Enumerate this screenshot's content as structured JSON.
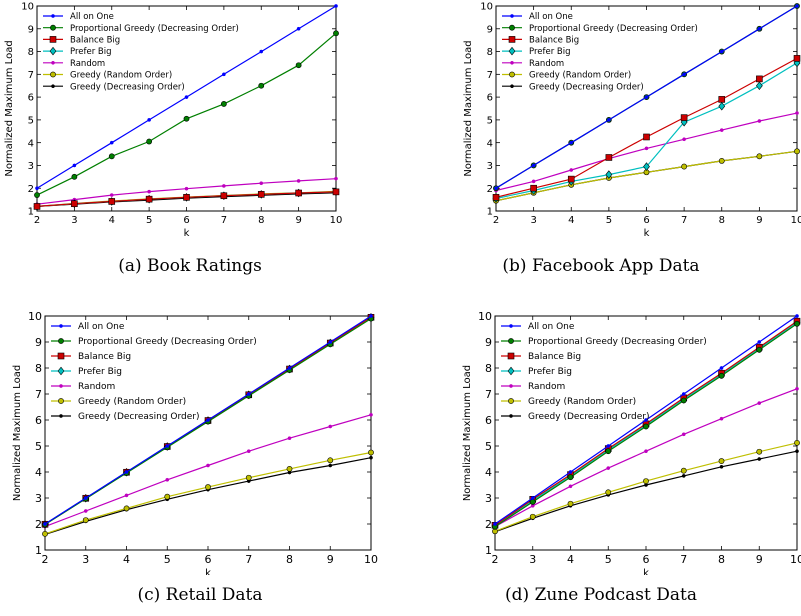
{
  "chart_data": [
    {
      "type": "line",
      "caption": "(a) Book Ratings",
      "xlabel": "k",
      "ylabel": "Normalized Maximum Load",
      "xlim": [
        2,
        10
      ],
      "ylim": [
        1,
        10
      ],
      "xticks": [
        2,
        3,
        4,
        5,
        6,
        7,
        8,
        9,
        10
      ],
      "yticks": [
        1,
        2,
        3,
        4,
        5,
        6,
        7,
        8,
        9,
        10
      ],
      "legend_position": "top-left",
      "grid": false,
      "x": [
        2,
        3,
        4,
        5,
        6,
        7,
        8,
        9,
        10
      ],
      "series": [
        {
          "name": "All on One",
          "color": "#0000ff",
          "marker": "dot",
          "values": [
            2,
            3,
            4,
            5,
            6,
            7,
            8,
            9,
            10
          ]
        },
        {
          "name": "Proportional Greedy (Decreasing Order)",
          "color": "#007f00",
          "marker": "circle",
          "values": [
            1.7,
            2.5,
            3.4,
            4.05,
            5.05,
            5.7,
            6.5,
            7.4,
            8.8
          ]
        },
        {
          "name": "Balance Big",
          "color": "#cc0000",
          "marker": "square",
          "values": [
            1.2,
            1.32,
            1.42,
            1.52,
            1.6,
            1.67,
            1.73,
            1.79,
            1.84
          ]
        },
        {
          "name": "Prefer Big",
          "color": "#00bfbf",
          "marker": "diamond",
          "values": [
            1.2,
            1.32,
            1.42,
            1.52,
            1.6,
            1.67,
            1.73,
            1.79,
            1.84
          ]
        },
        {
          "name": "Random",
          "color": "#bf00bf",
          "marker": "dot",
          "values": [
            1.3,
            1.5,
            1.7,
            1.85,
            1.98,
            2.1,
            2.22,
            2.32,
            2.42
          ]
        },
        {
          "name": "Greedy (Random Order)",
          "color": "#bfbf00",
          "marker": "circle",
          "values": [
            1.2,
            1.33,
            1.44,
            1.53,
            1.61,
            1.68,
            1.75,
            1.8,
            1.86
          ]
        },
        {
          "name": "Greedy (Decreasing Order)",
          "color": "#000000",
          "marker": "dot",
          "values": [
            1.2,
            1.3,
            1.4,
            1.48,
            1.56,
            1.63,
            1.69,
            1.75,
            1.8
          ]
        }
      ]
    },
    {
      "type": "line",
      "caption": "(b) Facebook App Data",
      "xlabel": "k",
      "ylabel": "Normalized Maximum Load",
      "xlim": [
        2,
        10
      ],
      "ylim": [
        1,
        10
      ],
      "xticks": [
        2,
        3,
        4,
        5,
        6,
        7,
        8,
        9,
        10
      ],
      "yticks": [
        1,
        2,
        3,
        4,
        5,
        6,
        7,
        8,
        9,
        10
      ],
      "legend_position": "top-left",
      "grid": false,
      "x": [
        2,
        3,
        4,
        5,
        6,
        7,
        8,
        9,
        10
      ],
      "series": [
        {
          "name": "All on One",
          "color": "#0000ff",
          "marker": "dot",
          "values": [
            2,
            3,
            4,
            5,
            6,
            7,
            8,
            9,
            10
          ]
        },
        {
          "name": "Proportional Greedy (Decreasing Order)",
          "color": "#007f00",
          "marker": "circle",
          "values": [
            2,
            3,
            4,
            5,
            6,
            7,
            8,
            9,
            10
          ]
        },
        {
          "name": "Balance Big",
          "color": "#cc0000",
          "marker": "square",
          "values": [
            1.6,
            2.0,
            2.4,
            3.35,
            4.25,
            5.1,
            5.9,
            6.8,
            7.7
          ]
        },
        {
          "name": "Prefer Big",
          "color": "#00bfbf",
          "marker": "diamond",
          "values": [
            1.55,
            1.9,
            2.3,
            2.6,
            2.95,
            4.9,
            5.6,
            6.5,
            7.5
          ]
        },
        {
          "name": "Random",
          "color": "#bf00bf",
          "marker": "dot",
          "values": [
            1.9,
            2.3,
            2.8,
            3.3,
            3.75,
            4.15,
            4.55,
            4.95,
            5.3
          ]
        },
        {
          "name": "Greedy (Random Order)",
          "color": "#bfbf00",
          "marker": "circle",
          "values": [
            1.45,
            1.8,
            2.15,
            2.45,
            2.7,
            2.95,
            3.2,
            3.4,
            3.62
          ]
        },
        {
          "name": "Greedy (Decreasing Order)",
          "color": "#000000",
          "marker": "dot",
          "values": [
            1.45,
            1.8,
            2.15,
            2.45,
            2.7,
            2.95,
            3.2,
            3.4,
            3.62
          ]
        }
      ]
    },
    {
      "type": "line",
      "caption": "(c) Retail Data",
      "xlabel": "k",
      "ylabel": "Normalized Maximum Load",
      "xlim": [
        2,
        10
      ],
      "ylim": [
        1,
        10
      ],
      "xticks": [
        2,
        3,
        4,
        5,
        6,
        7,
        8,
        9,
        10
      ],
      "yticks": [
        1,
        2,
        3,
        4,
        5,
        6,
        7,
        8,
        9,
        10
      ],
      "legend_position": "top-left",
      "grid": false,
      "x": [
        2,
        3,
        4,
        5,
        6,
        7,
        8,
        9,
        10
      ],
      "series": [
        {
          "name": "All on One",
          "color": "#0000ff",
          "marker": "dot",
          "values": [
            2,
            3,
            4,
            5,
            6,
            7,
            8,
            9,
            10
          ]
        },
        {
          "name": "Proportional Greedy (Decreasing Order)",
          "color": "#007f00",
          "marker": "circle",
          "values": [
            1.98,
            2.97,
            3.96,
            4.95,
            5.94,
            6.93,
            7.92,
            8.91,
            9.9
          ]
        },
        {
          "name": "Balance Big",
          "color": "#cc0000",
          "marker": "square",
          "values": [
            1.99,
            2.99,
            3.99,
            4.98,
            5.98,
            6.97,
            7.96,
            8.96,
            9.95
          ]
        },
        {
          "name": "Prefer Big",
          "color": "#00bfbf",
          "marker": "diamond",
          "values": [
            1.99,
            2.99,
            3.99,
            4.98,
            5.98,
            6.97,
            7.96,
            8.96,
            9.95
          ]
        },
        {
          "name": "Random",
          "color": "#bf00bf",
          "marker": "dot",
          "values": [
            1.9,
            2.5,
            3.1,
            3.7,
            4.25,
            4.8,
            5.3,
            5.75,
            6.2
          ]
        },
        {
          "name": "Greedy (Random Order)",
          "color": "#bfbf00",
          "marker": "circle",
          "values": [
            1.62,
            2.15,
            2.6,
            3.05,
            3.42,
            3.78,
            4.12,
            4.45,
            4.75
          ]
        },
        {
          "name": "Greedy (Decreasing Order)",
          "color": "#000000",
          "marker": "dot",
          "values": [
            1.6,
            2.1,
            2.55,
            2.95,
            3.32,
            3.65,
            3.98,
            4.25,
            4.55
          ]
        }
      ]
    },
    {
      "type": "line",
      "caption": "(d) Zune Podcast Data",
      "xlabel": "k",
      "ylabel": "Normalized Maximum Load",
      "xlim": [
        2,
        10
      ],
      "ylim": [
        1,
        10
      ],
      "xticks": [
        2,
        3,
        4,
        5,
        6,
        7,
        8,
        9,
        10
      ],
      "yticks": [
        1,
        2,
        3,
        4,
        5,
        6,
        7,
        8,
        9,
        10
      ],
      "legend_position": "top-left",
      "grid": false,
      "x": [
        2,
        3,
        4,
        5,
        6,
        7,
        8,
        9,
        10
      ],
      "series": [
        {
          "name": "All on One",
          "color": "#0000ff",
          "marker": "dot",
          "values": [
            2,
            3,
            4,
            5,
            6,
            7,
            8,
            9,
            10
          ]
        },
        {
          "name": "Proportional Greedy (Decreasing Order)",
          "color": "#007f00",
          "marker": "circle",
          "values": [
            1.9,
            2.85,
            3.8,
            4.8,
            5.75,
            6.75,
            7.7,
            8.7,
            9.7
          ]
        },
        {
          "name": "Balance Big",
          "color": "#cc0000",
          "marker": "square",
          "values": [
            1.95,
            2.95,
            3.9,
            4.9,
            5.85,
            6.85,
            7.8,
            8.8,
            9.8
          ]
        },
        {
          "name": "Prefer Big",
          "color": "#00bfbf",
          "marker": "diamond",
          "values": [
            1.93,
            2.9,
            3.85,
            4.85,
            5.8,
            6.8,
            7.75,
            8.75,
            9.75
          ]
        },
        {
          "name": "Random",
          "color": "#bf00bf",
          "marker": "dot",
          "values": [
            1.9,
            2.7,
            3.45,
            4.15,
            4.8,
            5.45,
            6.05,
            6.65,
            7.2
          ]
        },
        {
          "name": "Greedy (Random Order)",
          "color": "#bfbf00",
          "marker": "circle",
          "values": [
            1.72,
            2.28,
            2.78,
            3.22,
            3.65,
            4.05,
            4.42,
            4.78,
            5.12
          ]
        },
        {
          "name": "Greedy (Decreasing Order)",
          "color": "#000000",
          "marker": "dot",
          "values": [
            1.7,
            2.22,
            2.7,
            3.12,
            3.5,
            3.85,
            4.2,
            4.5,
            4.8
          ]
        }
      ]
    }
  ]
}
